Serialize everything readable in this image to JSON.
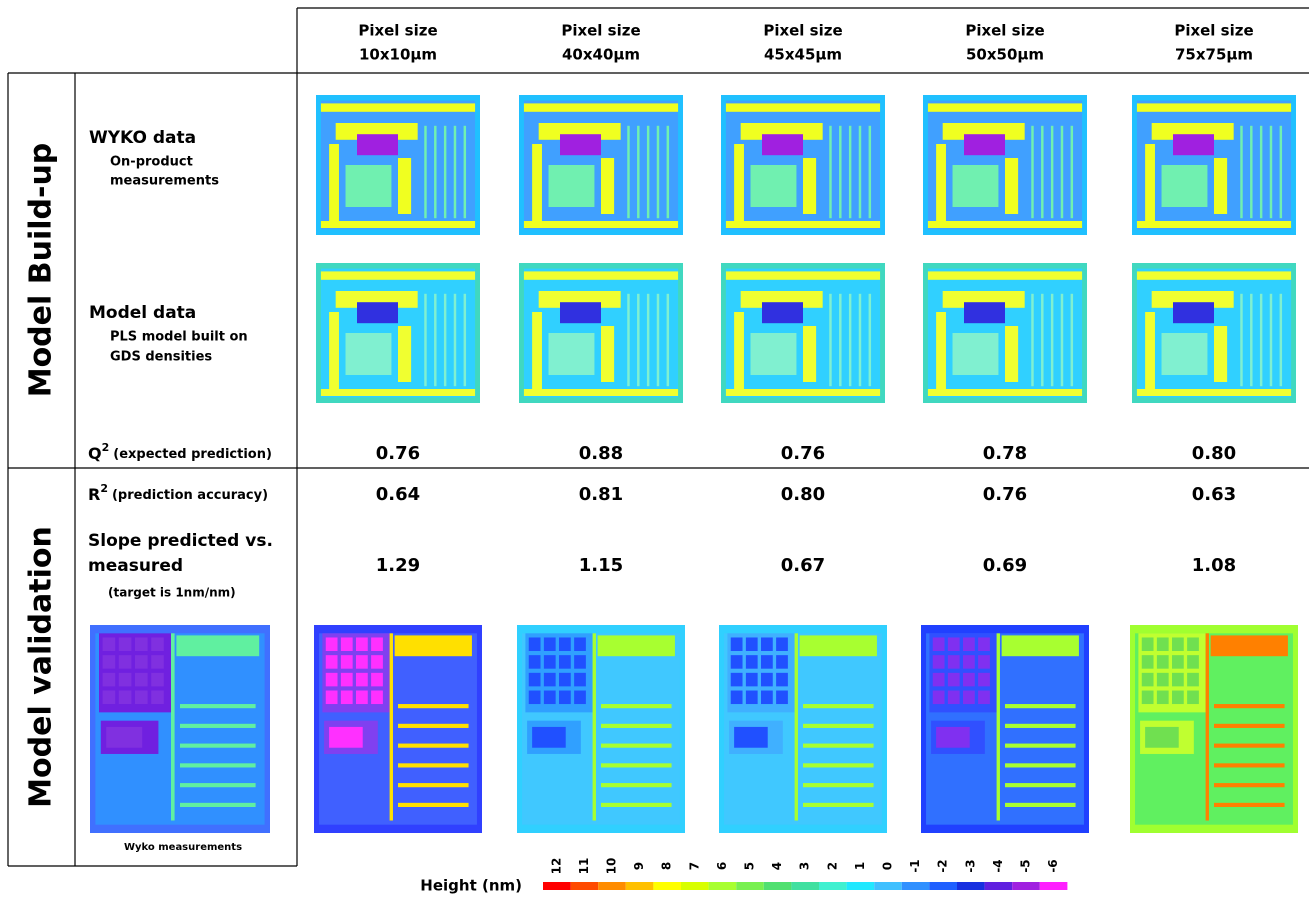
{
  "table": {
    "columns": [
      {
        "line1": "Pixel size",
        "line2": "10x10µm"
      },
      {
        "line1": "Pixel size",
        "line2": "40x40µm"
      },
      {
        "line1": "Pixel size",
        "line2": "45x45µm"
      },
      {
        "line1": "Pixel size",
        "line2": "50x50µm"
      },
      {
        "line1": "Pixel size",
        "line2": "75x75µm"
      }
    ],
    "sections": [
      "Model Build-up",
      "Model validation"
    ],
    "wyko": {
      "title": "WYKO data",
      "subtitle": [
        "On-product",
        "measurements"
      ]
    },
    "model": {
      "title": "Model data",
      "subtitle": [
        "PLS model built on",
        "GDS densities"
      ]
    },
    "q2": {
      "symbol": "Q",
      "exponent": "2",
      "note": "(expected prediction)",
      "values": [
        "0.76",
        "0.88",
        "0.76",
        "0.78",
        "0.80"
      ]
    },
    "r2": {
      "symbol": "R",
      "exponent": "2",
      "note": "(prediction accuracy)",
      "values": [
        "0.64",
        "0.81",
        "0.80",
        "0.76",
        "0.63"
      ]
    },
    "slope": {
      "title": [
        "Slope predicted vs.",
        "measured"
      ],
      "note": "(target is 1nm/nm)",
      "values": [
        "1.29",
        "1.15",
        "0.67",
        "0.69",
        "1.08"
      ]
    },
    "wyko_caption": "Wyko measurements"
  },
  "colorbar": {
    "title": "Height (nm)",
    "labels": [
      "12",
      "11",
      "10",
      "9",
      "8",
      "7",
      "6",
      "5",
      "4",
      "3",
      "2",
      "1",
      "0",
      "-1",
      "-2",
      "-3",
      "-4",
      "-5",
      "-6"
    ],
    "colors": [
      "#ff0000",
      "#ff4a00",
      "#ff8c00",
      "#ffc000",
      "#ffff00",
      "#d8ff00",
      "#a8ff30",
      "#78f050",
      "#50e070",
      "#40e0a0",
      "#40f0d0",
      "#20e8ff",
      "#40c0ff",
      "#3090ff",
      "#2060ff",
      "#1830e0",
      "#6020e0",
      "#a020e0",
      "#ff20ff"
    ]
  }
}
